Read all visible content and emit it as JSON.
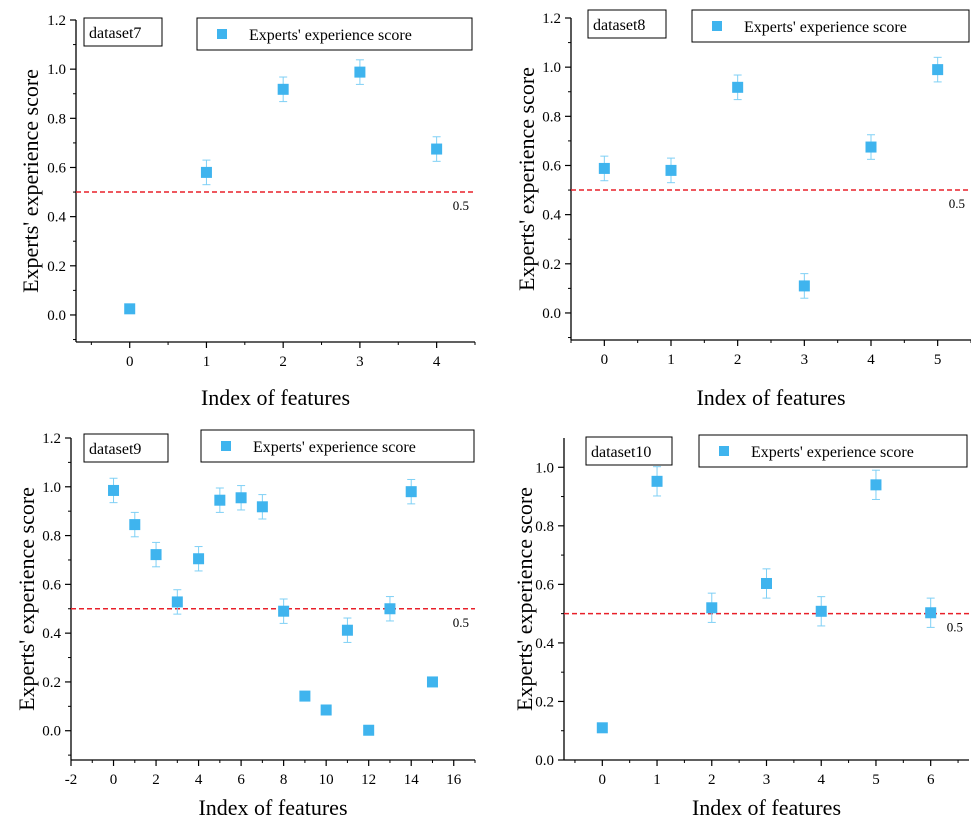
{
  "chart_data": [
    {
      "type": "scatter",
      "panel_label": "dataset7",
      "legend": "Experts' experience  score",
      "xlabel": "Index of features",
      "ylabel": "Experts' experience  score",
      "xlim": [
        -0.7,
        4.5
      ],
      "ylim": [
        -0.11,
        1.2
      ],
      "xticks": [
        0,
        1,
        2,
        3,
        4
      ],
      "yticks": [
        0.0,
        0.2,
        0.4,
        0.6,
        0.8,
        1.0,
        1.2
      ],
      "ytick_labels": [
        "0.0",
        "0.2",
        "0.4",
        "0.6",
        "0.8",
        "1.0",
        "1.2"
      ],
      "x": [
        0,
        1,
        2,
        3,
        4
      ],
      "y": [
        0.025,
        0.58,
        0.918,
        0.988,
        0.675
      ],
      "error": [
        0,
        0.05,
        0.05,
        0.05,
        0.05
      ],
      "reference_line": {
        "value": 0.5,
        "label": "0.5"
      }
    },
    {
      "type": "scatter",
      "panel_label": "dataset8",
      "legend": "Experts' experience score",
      "xlabel": "Index of features",
      "ylabel": "Experts' experience score",
      "xlim": [
        -0.5,
        5.5
      ],
      "ylim": [
        -0.11,
        1.2
      ],
      "xticks": [
        0,
        1,
        2,
        3,
        4,
        5
      ],
      "yticks": [
        0.0,
        0.2,
        0.4,
        0.6,
        0.8,
        1.0,
        1.2
      ],
      "ytick_labels": [
        "0.0",
        "0.2",
        "0.4",
        "0.6",
        "0.8",
        "1.0",
        "1.2"
      ],
      "x": [
        0,
        1,
        2,
        3,
        4,
        5
      ],
      "y": [
        0.588,
        0.58,
        0.918,
        0.11,
        0.675,
        0.99
      ],
      "error": [
        0.05,
        0.05,
        0.05,
        0.05,
        0.05,
        0.05
      ],
      "reference_line": {
        "value": 0.5,
        "label": "0.5"
      }
    },
    {
      "type": "scatter",
      "panel_label": "dataset9",
      "legend": "Experts' experience score",
      "xlabel": "Index of features",
      "ylabel": "Experts' experience score",
      "xlim": [
        -2,
        17
      ],
      "ylim": [
        -0.12,
        1.2
      ],
      "xticks": [
        -2,
        0,
        2,
        4,
        6,
        8,
        10,
        12,
        14,
        16
      ],
      "yticks": [
        0.0,
        0.2,
        0.4,
        0.6,
        0.8,
        1.0,
        1.2
      ],
      "ytick_labels": [
        "0.0",
        "0.2",
        "0.4",
        "0.6",
        "0.8",
        "1.0",
        "1.2"
      ],
      "x": [
        0,
        1,
        2,
        3,
        4,
        5,
        6,
        7,
        8,
        9,
        10,
        11,
        12,
        13,
        14,
        15
      ],
      "y": [
        0.985,
        0.845,
        0.722,
        0.528,
        0.705,
        0.945,
        0.955,
        0.918,
        0.49,
        0.142,
        0.085,
        0.412,
        0.002,
        0.5,
        0.98,
        0.2
      ],
      "error": [
        0.05,
        0.05,
        0.05,
        0.05,
        0.05,
        0.05,
        0.05,
        0.05,
        0.05,
        0,
        0,
        0.05,
        0,
        0.05,
        0.05,
        0
      ],
      "reference_line": {
        "value": 0.5,
        "label": "0.5"
      }
    },
    {
      "type": "scatter",
      "panel_label": "dataset10",
      "legend": "Experts' experience score",
      "xlabel": "Index of features",
      "ylabel": "Experts' experience score",
      "xlim": [
        -0.7,
        6.7
      ],
      "ylim": [
        0.0,
        1.1
      ],
      "xticks": [
        0,
        1,
        2,
        3,
        4,
        5,
        6
      ],
      "yticks": [
        0.0,
        0.2,
        0.4,
        0.6,
        0.8,
        1.0
      ],
      "ytick_labels": [
        "0.0",
        "0.2",
        "0.4",
        "0.6",
        "0.8",
        "1.0"
      ],
      "x": [
        0,
        1,
        2,
        3,
        4,
        5,
        6
      ],
      "y": [
        0.11,
        0.952,
        0.52,
        0.603,
        0.508,
        0.94,
        0.503
      ],
      "error": [
        0,
        0.05,
        0.05,
        0.05,
        0.05,
        0.05,
        0.05
      ],
      "reference_line": {
        "value": 0.5,
        "label": "0.5"
      }
    }
  ],
  "colors": {
    "marker": "#3fb4ee",
    "error_bar": "#7fd0f5",
    "reference_line": "#e8202a",
    "axis": "#000000"
  }
}
